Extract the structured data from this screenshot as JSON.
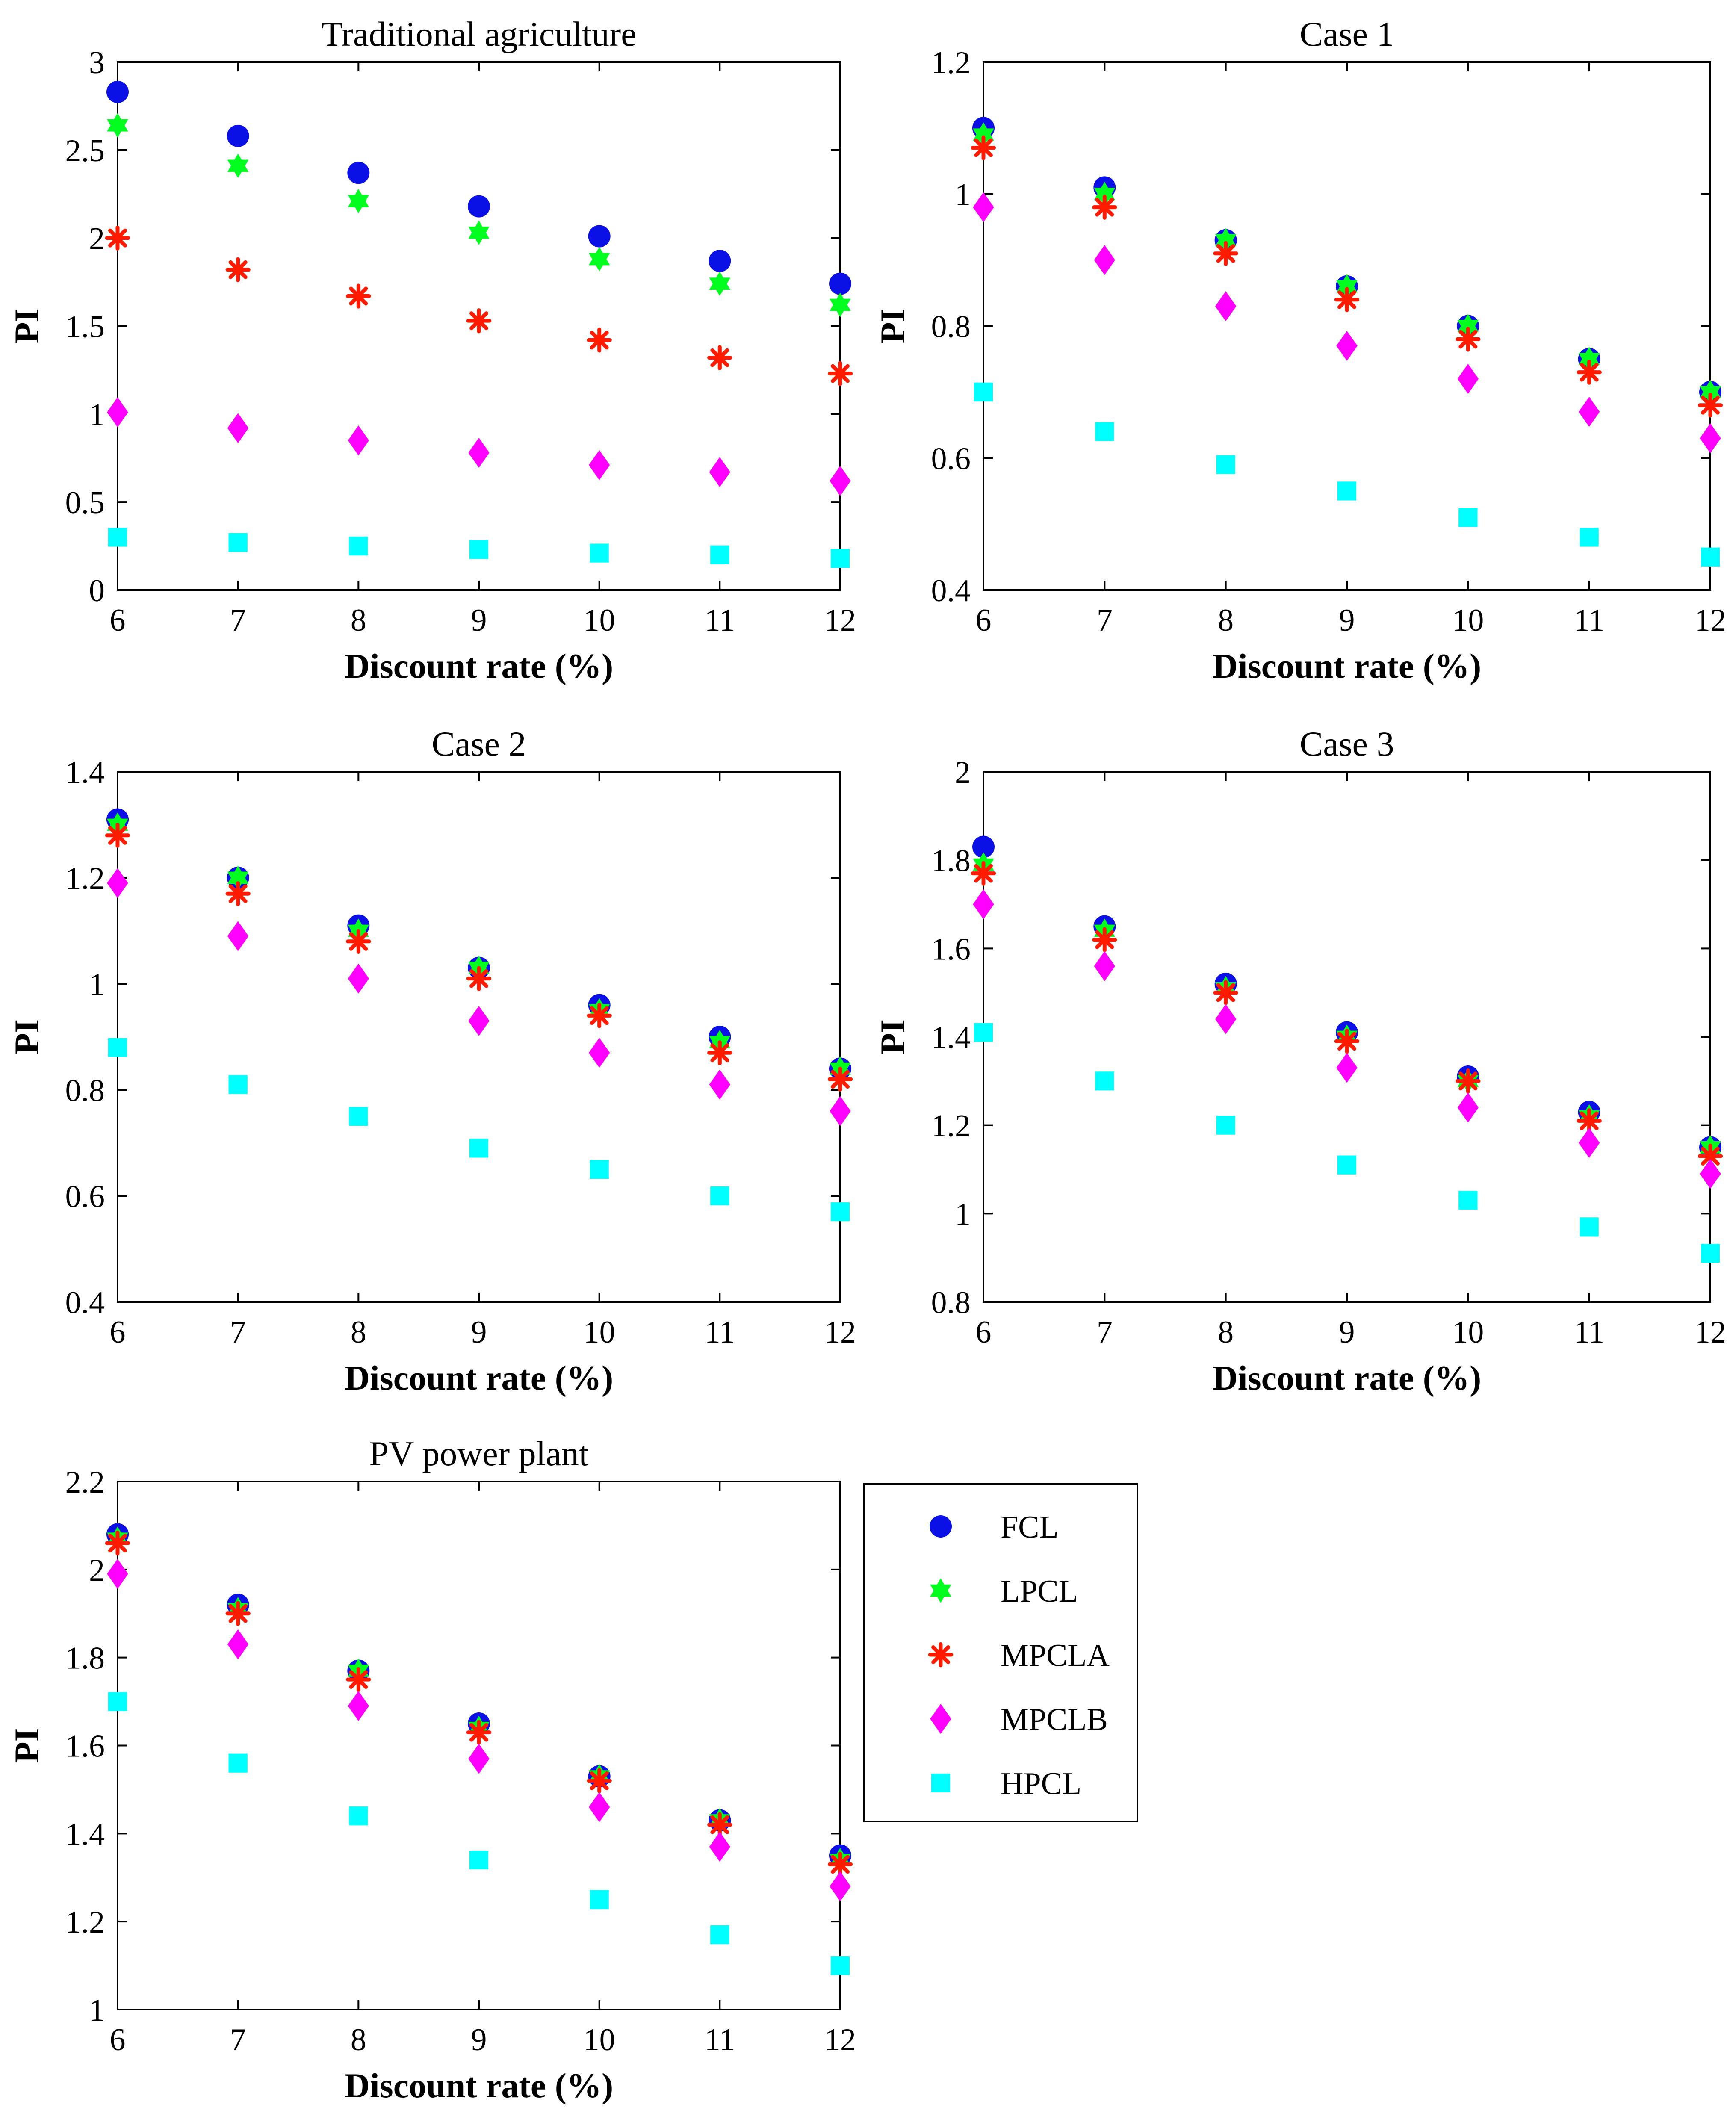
{
  "chart_data": [
    {
      "type": "scatter",
      "title": "Traditional agriculture",
      "xlabel": "Discount rate (%)",
      "ylabel": "PI",
      "xlim": [
        6,
        12
      ],
      "ylim": [
        0,
        3
      ],
      "x_ticks": [
        "6",
        "7",
        "8",
        "9",
        "10",
        "11",
        "12"
      ],
      "y_ticks": [
        "0",
        "0.5",
        "1",
        "1.5",
        "2",
        "2.5",
        "3"
      ],
      "x": [
        6,
        7,
        8,
        9,
        10,
        11,
        12
      ],
      "series": [
        {
          "name": "FCL",
          "values": [
            2.83,
            2.58,
            2.37,
            2.18,
            2.01,
            1.87,
            1.74
          ]
        },
        {
          "name": "LPCL",
          "values": [
            2.64,
            2.41,
            2.21,
            2.03,
            1.88,
            1.74,
            1.62
          ]
        },
        {
          "name": "MPCLA",
          "values": [
            2.0,
            1.82,
            1.67,
            1.53,
            1.42,
            1.32,
            1.23
          ]
        },
        {
          "name": "MPCLB",
          "values": [
            1.01,
            0.92,
            0.85,
            0.78,
            0.71,
            0.67,
            0.62
          ]
        },
        {
          "name": "HPCL",
          "values": [
            0.3,
            0.27,
            0.25,
            0.23,
            0.21,
            0.2,
            0.18
          ]
        }
      ]
    },
    {
      "type": "scatter",
      "title": "Case 1",
      "xlabel": "Discount rate (%)",
      "ylabel": "PI",
      "xlim": [
        6,
        12
      ],
      "ylim": [
        0.4,
        1.2
      ],
      "x_ticks": [
        "6",
        "7",
        "8",
        "9",
        "10",
        "11",
        "12"
      ],
      "y_ticks": [
        "0.4",
        "0.6",
        "0.8",
        "1",
        "1.2"
      ],
      "x": [
        6,
        7,
        8,
        9,
        10,
        11,
        12
      ],
      "series": [
        {
          "name": "FCL",
          "values": [
            1.1,
            1.01,
            0.93,
            0.86,
            0.8,
            0.75,
            0.7
          ]
        },
        {
          "name": "LPCL",
          "values": [
            1.09,
            1.0,
            0.93,
            0.86,
            0.8,
            0.75,
            0.7
          ]
        },
        {
          "name": "MPCLA",
          "values": [
            1.07,
            0.98,
            0.91,
            0.84,
            0.78,
            0.73,
            0.68
          ]
        },
        {
          "name": "MPCLB",
          "values": [
            0.98,
            0.9,
            0.83,
            0.77,
            0.72,
            0.67,
            0.63
          ]
        },
        {
          "name": "HPCL",
          "values": [
            0.7,
            0.64,
            0.59,
            0.55,
            0.51,
            0.48,
            0.45
          ]
        }
      ]
    },
    {
      "type": "scatter",
      "title": "Case 2",
      "xlabel": "Discount rate (%)",
      "ylabel": "PI",
      "xlim": [
        6,
        12
      ],
      "ylim": [
        0.4,
        1.4
      ],
      "x_ticks": [
        "6",
        "7",
        "8",
        "9",
        "10",
        "11",
        "12"
      ],
      "y_ticks": [
        "0.4",
        "0.6",
        "0.8",
        "1",
        "1.2",
        "1.4"
      ],
      "x": [
        6,
        7,
        8,
        9,
        10,
        11,
        12
      ],
      "series": [
        {
          "name": "FCL",
          "values": [
            1.31,
            1.2,
            1.11,
            1.03,
            0.96,
            0.9,
            0.84
          ]
        },
        {
          "name": "LPCL",
          "values": [
            1.3,
            1.2,
            1.1,
            1.03,
            0.95,
            0.89,
            0.84
          ]
        },
        {
          "name": "MPCLA",
          "values": [
            1.28,
            1.17,
            1.08,
            1.01,
            0.94,
            0.87,
            0.82
          ]
        },
        {
          "name": "MPCLB",
          "values": [
            1.19,
            1.09,
            1.01,
            0.93,
            0.87,
            0.81,
            0.76
          ]
        },
        {
          "name": "HPCL",
          "values": [
            0.88,
            0.81,
            0.75,
            0.69,
            0.65,
            0.6,
            0.57
          ]
        }
      ]
    },
    {
      "type": "scatter",
      "title": "Case 3",
      "xlabel": "Discount rate (%)",
      "ylabel": "PI",
      "xlim": [
        6,
        12
      ],
      "ylim": [
        0.8,
        2
      ],
      "x_ticks": [
        "6",
        "7",
        "8",
        "9",
        "10",
        "11",
        "12"
      ],
      "y_ticks": [
        "0.8",
        "1",
        "1.2",
        "1.4",
        "1.6",
        "1.8",
        "2"
      ],
      "x": [
        6,
        7,
        8,
        9,
        10,
        11,
        12
      ],
      "series": [
        {
          "name": "FCL",
          "values": [
            1.83,
            1.65,
            1.52,
            1.41,
            1.31,
            1.23,
            1.15
          ]
        },
        {
          "name": "LPCL",
          "values": [
            1.79,
            1.64,
            1.51,
            1.4,
            1.3,
            1.22,
            1.15
          ]
        },
        {
          "name": "MPCLA",
          "values": [
            1.77,
            1.62,
            1.5,
            1.39,
            1.3,
            1.21,
            1.13
          ]
        },
        {
          "name": "MPCLB",
          "values": [
            1.7,
            1.56,
            1.44,
            1.33,
            1.24,
            1.16,
            1.09
          ]
        },
        {
          "name": "HPCL",
          "values": [
            1.41,
            1.3,
            1.2,
            1.11,
            1.03,
            0.97,
            0.91
          ]
        }
      ]
    },
    {
      "type": "scatter",
      "title": "PV power plant",
      "xlabel": "Discount rate (%)",
      "ylabel": "PI",
      "xlim": [
        6,
        12
      ],
      "ylim": [
        1,
        2.2
      ],
      "x_ticks": [
        "6",
        "7",
        "8",
        "9",
        "10",
        "11",
        "12"
      ],
      "y_ticks": [
        "1",
        "1.2",
        "1.4",
        "1.6",
        "1.8",
        "2",
        "2.2"
      ],
      "x": [
        6,
        7,
        8,
        9,
        10,
        11,
        12
      ],
      "series": [
        {
          "name": "FCL",
          "values": [
            2.08,
            1.92,
            1.77,
            1.65,
            1.53,
            1.43,
            1.35
          ]
        },
        {
          "name": "LPCL",
          "values": [
            2.07,
            1.91,
            1.77,
            1.64,
            1.53,
            1.43,
            1.34
          ]
        },
        {
          "name": "MPCLA",
          "values": [
            2.06,
            1.9,
            1.75,
            1.63,
            1.52,
            1.42,
            1.33
          ]
        },
        {
          "name": "MPCLB",
          "values": [
            1.99,
            1.83,
            1.69,
            1.57,
            1.46,
            1.37,
            1.28
          ]
        },
        {
          "name": "HPCL",
          "values": [
            1.7,
            1.56,
            1.44,
            1.34,
            1.25,
            1.17,
            1.1
          ]
        }
      ]
    }
  ],
  "legend": {
    "entries": [
      "FCL",
      "LPCL",
      "MPCLA",
      "MPCLB",
      "HPCL"
    ]
  },
  "series_styles": {
    "FCL": {
      "marker": "circle",
      "color": "#0a10e6"
    },
    "LPCL": {
      "marker": "hexagram",
      "color": "#00ff1e"
    },
    "MPCLA": {
      "marker": "asterisk",
      "color": "#ff1a00"
    },
    "MPCLB": {
      "marker": "diamond",
      "color": "#ff00ff"
    },
    "HPCL": {
      "marker": "square",
      "color": "#00ffff"
    }
  }
}
